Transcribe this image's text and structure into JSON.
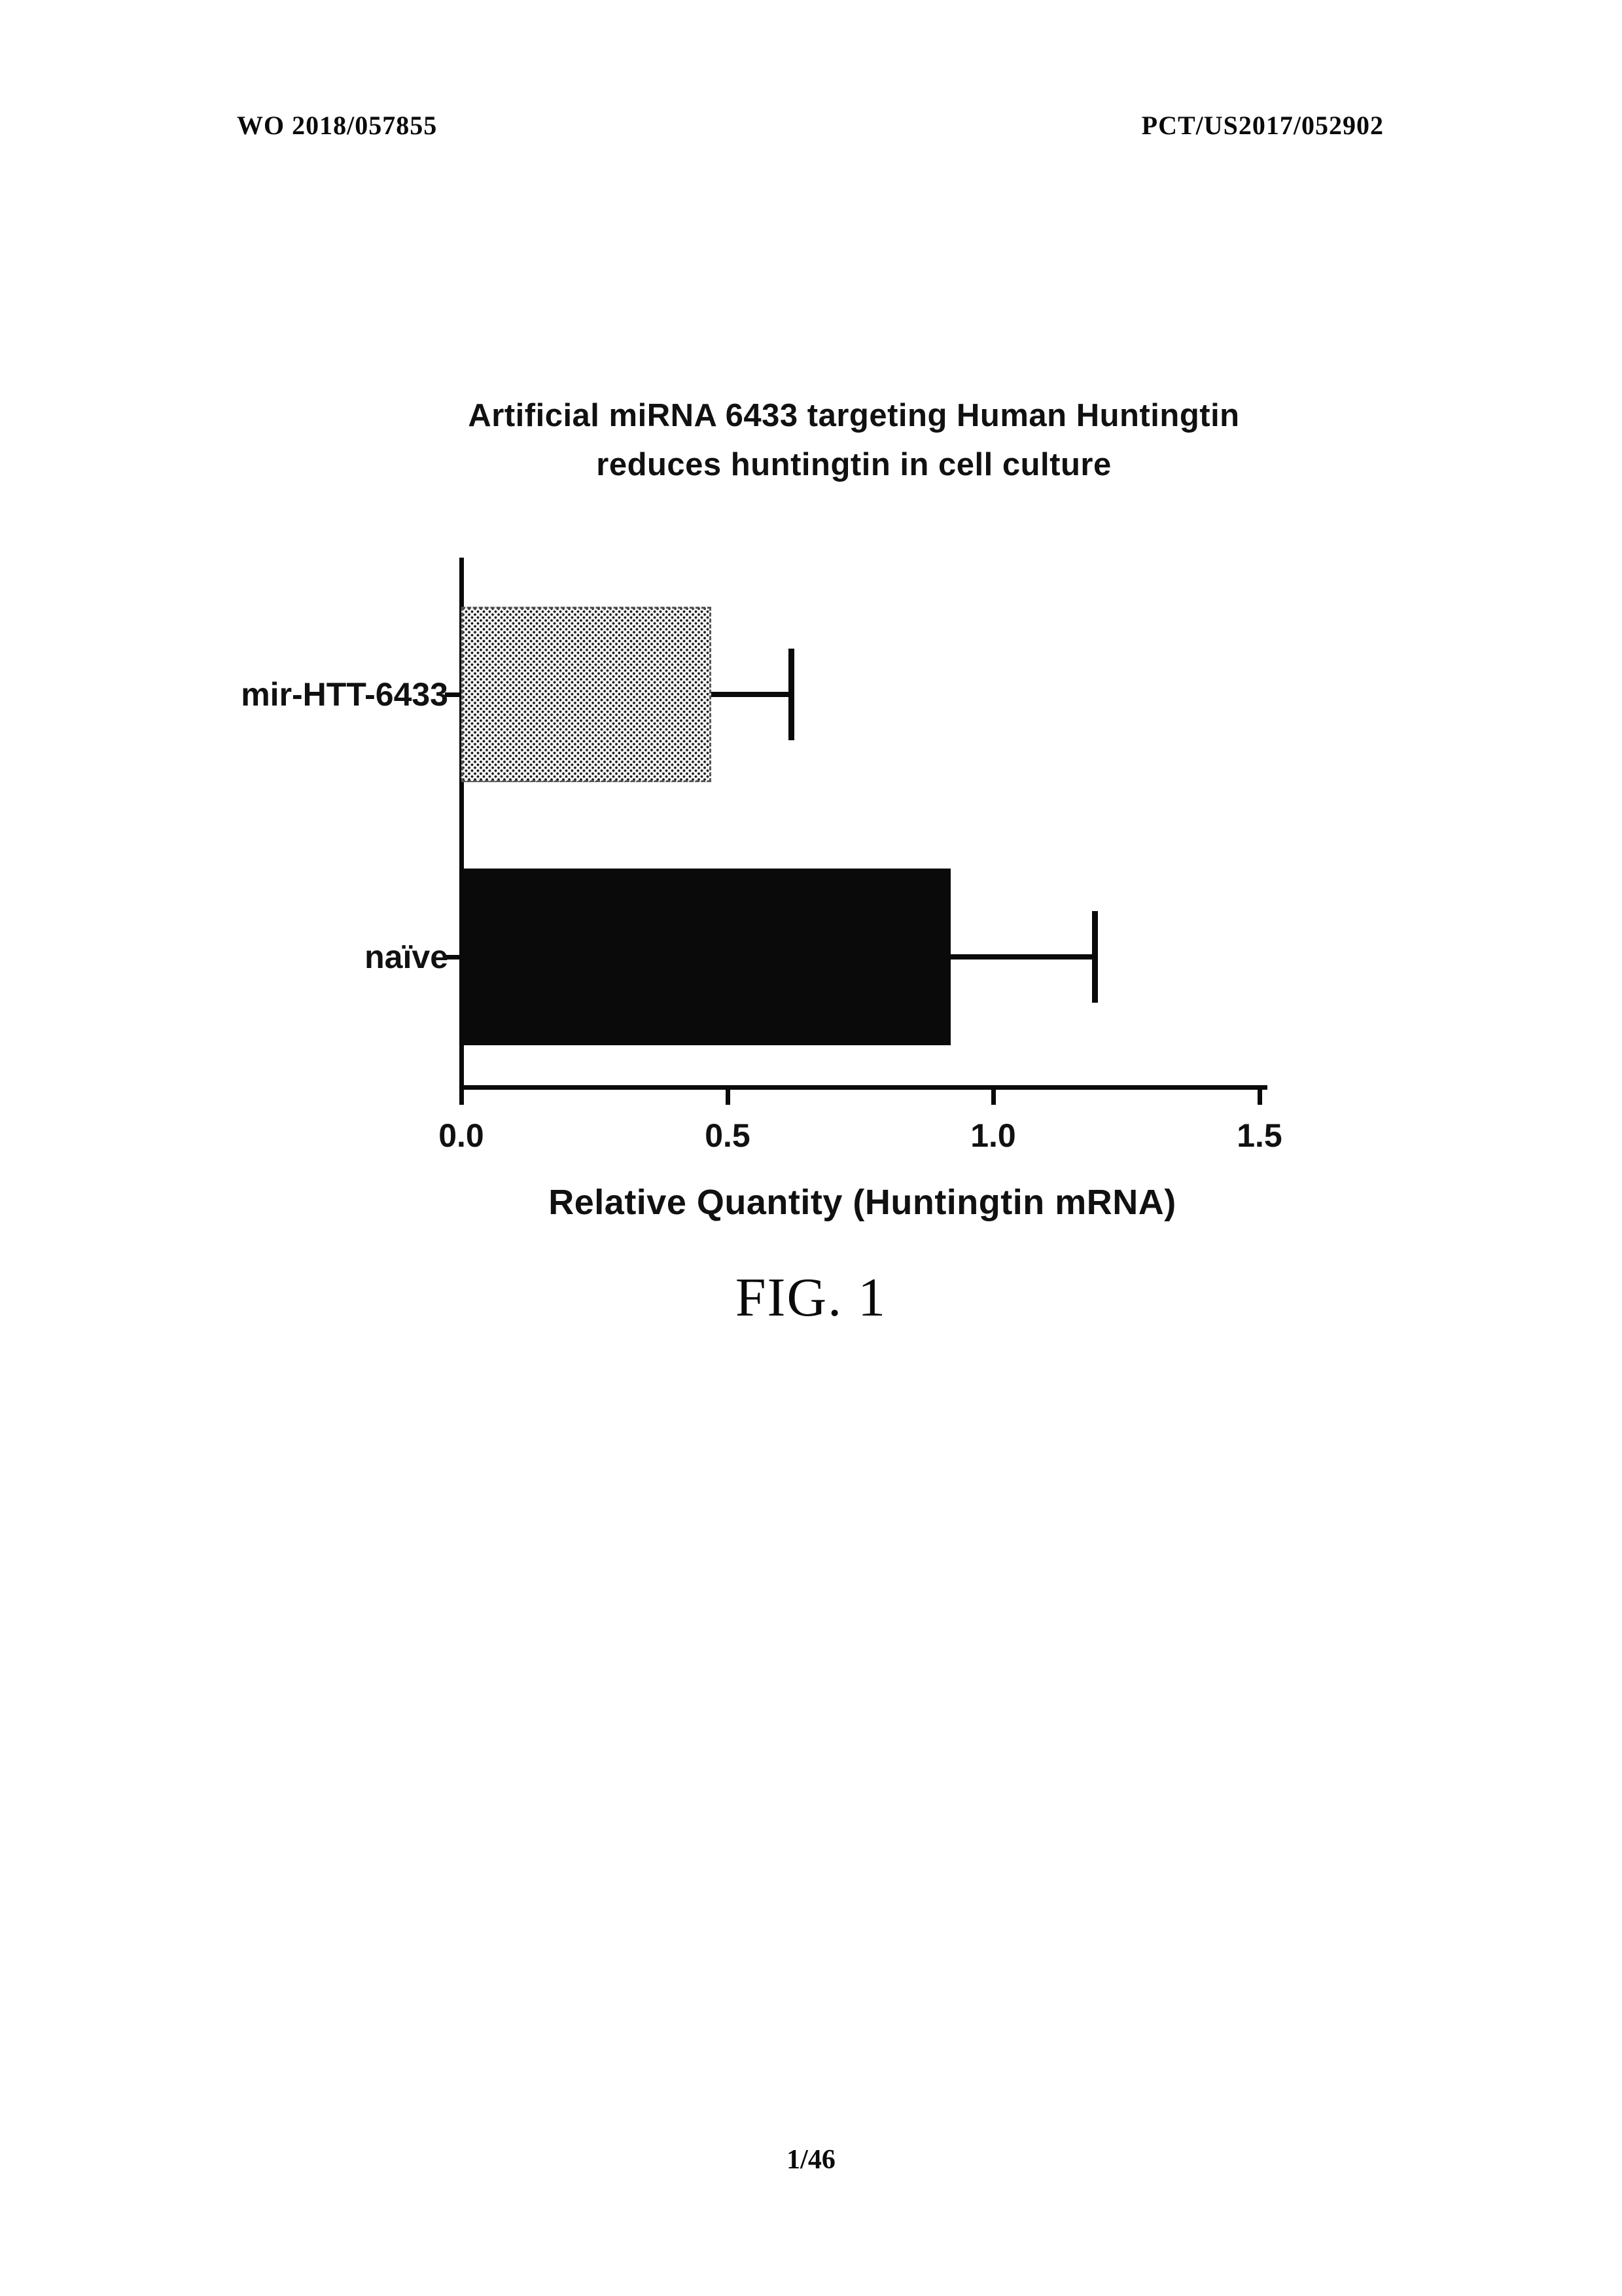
{
  "page": {
    "header_left": "WO 2018/057855",
    "header_right": "PCT/US2017/052902",
    "figure_label": "FIG. 1",
    "page_number": "1/46"
  },
  "chart_data": {
    "type": "bar",
    "orientation": "horizontal",
    "title": "Artificial miRNA 6433 targeting Human Huntingtin reduces huntingtin in cell culture",
    "title_lines": [
      "Artificial miRNA 6433 targeting Human Huntingtin",
      "reduces huntingtin in cell culture"
    ],
    "categories": [
      "mir-HTT-6433",
      "naïve"
    ],
    "values": [
      0.47,
      0.92
    ],
    "errors_upper": [
      0.15,
      0.27
    ],
    "xlabel": "Relative Quantity (Huntingtin mRNA)",
    "xlim": [
      0,
      1.5
    ],
    "xticks": [
      0,
      0.5,
      1,
      1.5
    ],
    "xtick_labels": [
      "0.0",
      "0.5",
      "1.0",
      "1.5"
    ],
    "bar_fill": [
      "halftone-gray-dots",
      "solid-black"
    ],
    "grid": false,
    "legend": false
  }
}
